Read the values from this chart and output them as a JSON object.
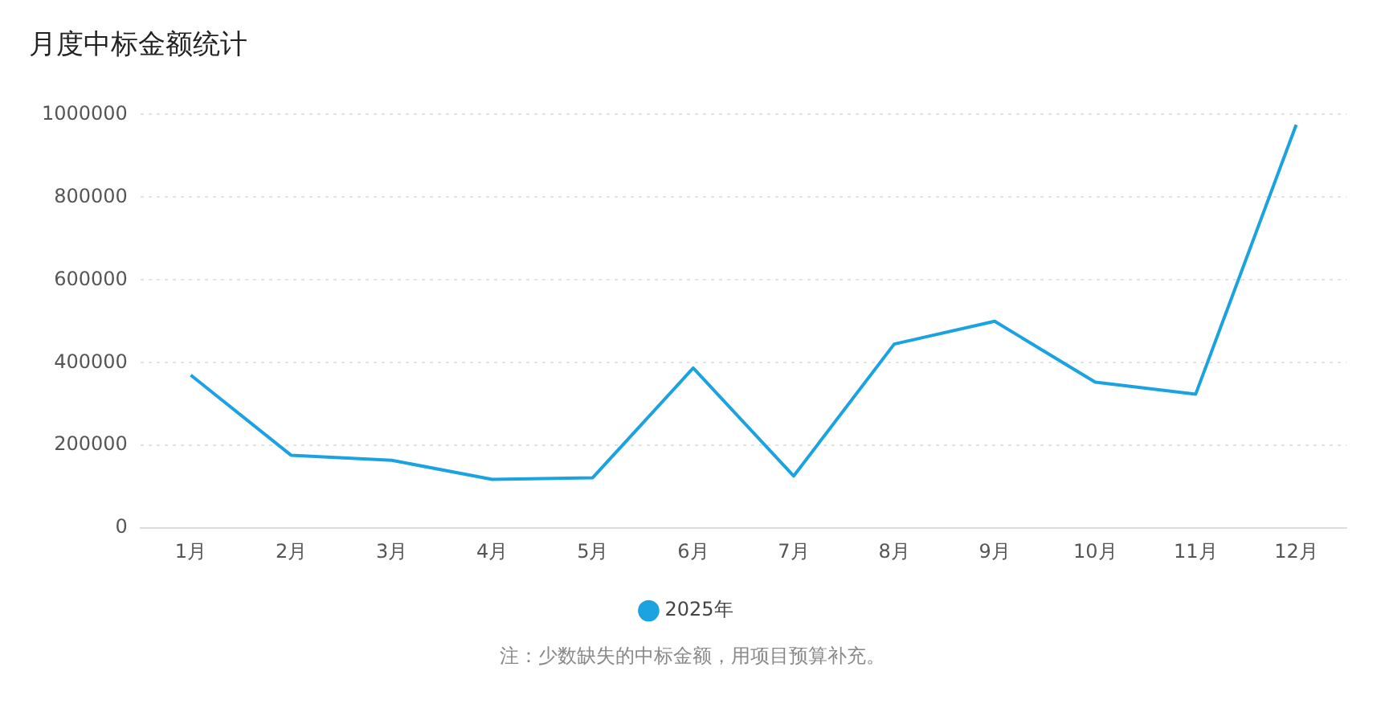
{
  "chart_data": {
    "type": "line",
    "title": "月度中标金额统计",
    "categories": [
      "1月",
      "2月",
      "3月",
      "4月",
      "5月",
      "6月",
      "7月",
      "8月",
      "9月",
      "10月",
      "11月",
      "12月"
    ],
    "series": [
      {
        "name": "2025年",
        "color": "#1aa3e0",
        "values": [
          370000,
          176000,
          164000,
          118000,
          122000,
          387000,
          126000,
          445000,
          500000,
          353000,
          324000,
          975000
        ]
      }
    ],
    "ylim": [
      0,
      1000000
    ],
    "yticks": [
      0,
      200000,
      400000,
      600000,
      800000,
      1000000
    ],
    "grid": "y",
    "legend": "bottom",
    "marker": "none",
    "annotations": [
      "注：少数缺失的中标金额，用项目预算补充。"
    ]
  }
}
